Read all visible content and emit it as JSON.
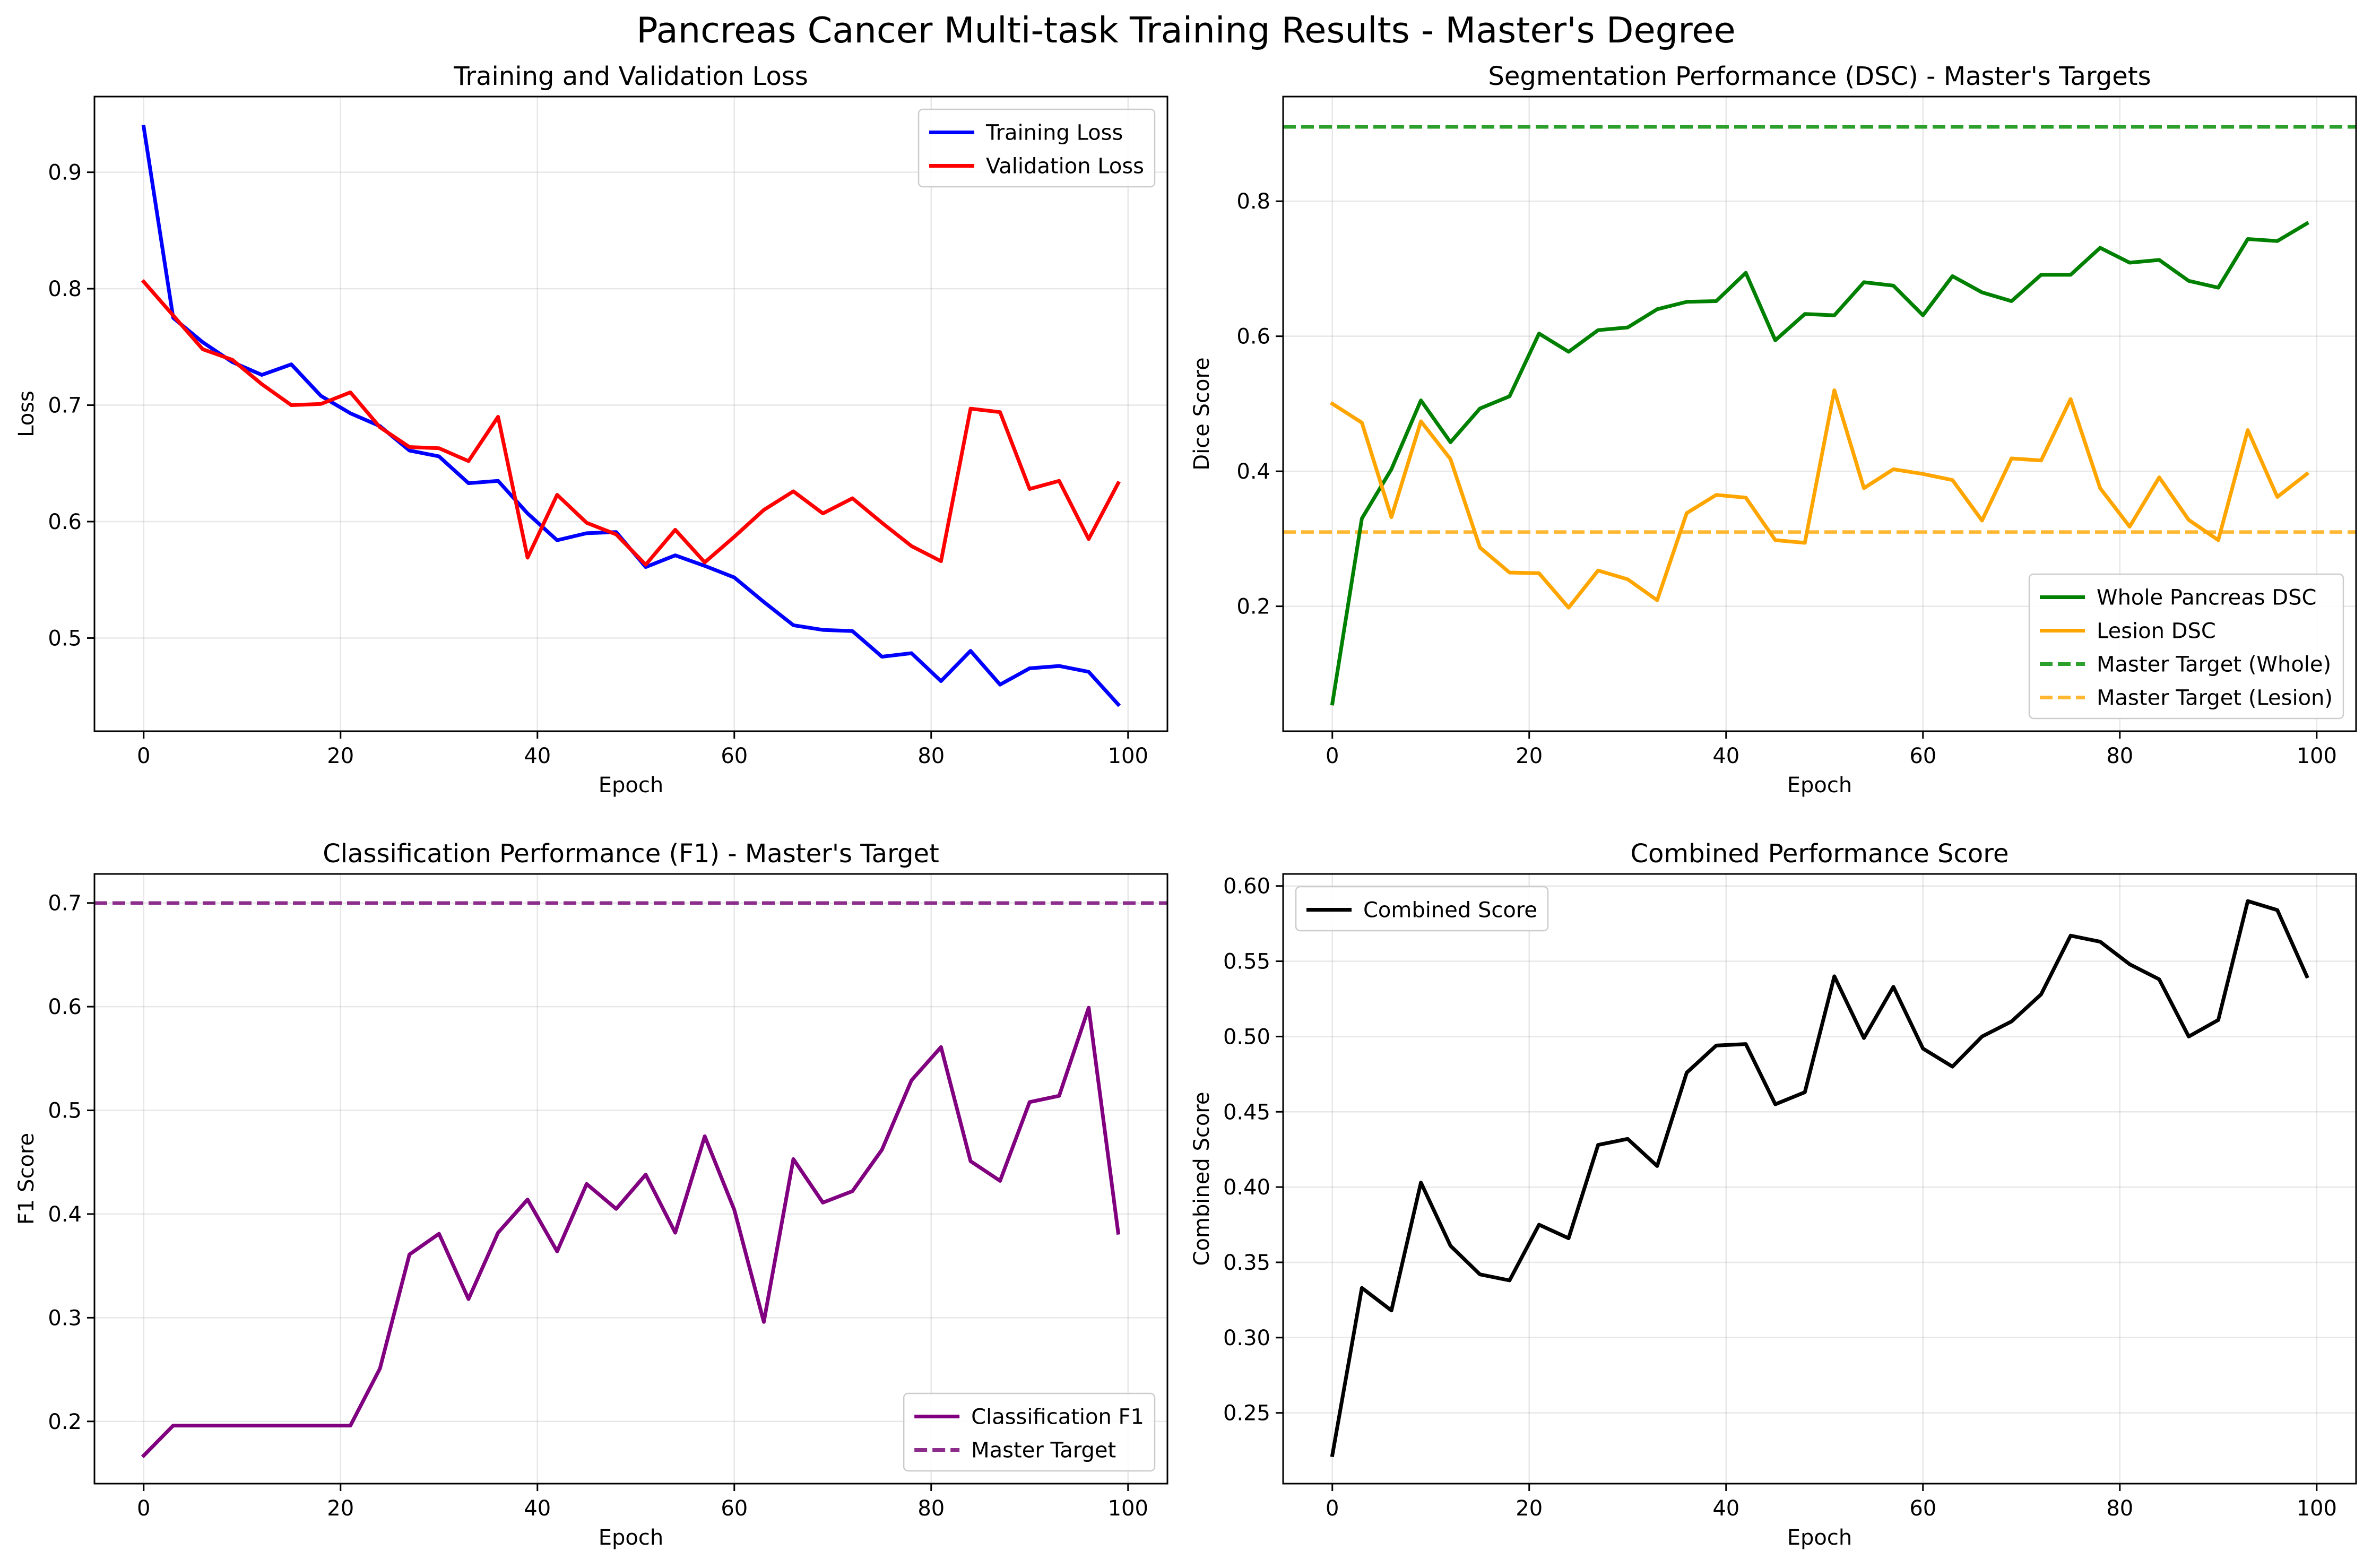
{
  "figure": {
    "title": "Pancreas Cancer Multi-task Training Results - Master's Degree"
  },
  "chart_data": [
    {
      "id": "loss",
      "type": "line",
      "title": "Training and Validation Loss",
      "xlabel": "Epoch",
      "ylabel": "Loss",
      "xlim": [
        -5,
        104
      ],
      "ylim": [
        0.42,
        0.965
      ],
      "xticks": [
        0,
        20,
        40,
        60,
        80,
        100
      ],
      "yticks": [
        0.5,
        0.6,
        0.7,
        0.8,
        0.9
      ],
      "ytick_labels": [
        "0.5",
        "0.6",
        "0.7",
        "0.8",
        "0.9"
      ],
      "grid": true,
      "legend_position": "top-right",
      "x": [
        0,
        3,
        6,
        9,
        12,
        15,
        18,
        21,
        24,
        27,
        30,
        33,
        36,
        39,
        42,
        45,
        48,
        51,
        54,
        57,
        60,
        63,
        66,
        69,
        72,
        75,
        78,
        81,
        84,
        87,
        90,
        93,
        96,
        99
      ],
      "series": [
        {
          "name": "Training Loss",
          "color": "#0000ff",
          "style": "solid",
          "values": [
            0.939,
            0.775,
            0.754,
            0.737,
            0.726,
            0.735,
            0.708,
            0.693,
            0.682,
            0.661,
            0.656,
            0.633,
            0.635,
            0.607,
            0.584,
            0.59,
            0.591,
            0.561,
            0.571,
            0.562,
            0.552,
            0.531,
            0.511,
            0.507,
            0.506,
            0.484,
            0.487,
            0.463,
            0.489,
            0.46,
            0.474,
            0.476,
            0.471,
            0.443
          ]
        },
        {
          "name": "Validation Loss",
          "color": "#ff0000",
          "style": "solid",
          "values": [
            0.806,
            0.777,
            0.748,
            0.739,
            0.718,
            0.7,
            0.701,
            0.711,
            0.681,
            0.664,
            0.663,
            0.652,
            0.69,
            0.569,
            0.623,
            0.599,
            0.589,
            0.563,
            0.593,
            0.565,
            0.587,
            0.61,
            0.626,
            0.607,
            0.62,
            0.599,
            0.579,
            0.566,
            0.697,
            0.694,
            0.628,
            0.635,
            0.585,
            0.633
          ]
        }
      ]
    },
    {
      "id": "dsc",
      "type": "line",
      "title": "Segmentation Performance (DSC) - Master's Targets",
      "xlabel": "Epoch",
      "ylabel": "Dice Score",
      "xlim": [
        -5,
        104
      ],
      "ylim": [
        0.015,
        0.955
      ],
      "xticks": [
        0,
        20,
        40,
        60,
        80,
        100
      ],
      "yticks": [
        0.2,
        0.4,
        0.6,
        0.8
      ],
      "ytick_labels": [
        "0.2",
        "0.4",
        "0.6",
        "0.8"
      ],
      "grid": true,
      "legend_position": "bottom-right",
      "x": [
        0,
        3,
        6,
        9,
        12,
        15,
        18,
        21,
        24,
        27,
        30,
        33,
        36,
        39,
        42,
        45,
        48,
        51,
        54,
        57,
        60,
        63,
        66,
        69,
        72,
        75,
        78,
        81,
        84,
        87,
        90,
        93,
        96,
        99
      ],
      "series": [
        {
          "name": "Whole Pancreas DSC",
          "color": "#008000",
          "style": "solid",
          "values": [
            0.056,
            0.33,
            0.403,
            0.505,
            0.443,
            0.493,
            0.511,
            0.604,
            0.577,
            0.609,
            0.613,
            0.64,
            0.651,
            0.652,
            0.694,
            0.594,
            0.633,
            0.631,
            0.68,
            0.675,
            0.631,
            0.689,
            0.665,
            0.652,
            0.691,
            0.691,
            0.731,
            0.709,
            0.713,
            0.682,
            0.672,
            0.744,
            0.741,
            0.767
          ]
        },
        {
          "name": "Lesion DSC",
          "color": "#ffa500",
          "style": "solid",
          "values": [
            0.5,
            0.472,
            0.332,
            0.474,
            0.418,
            0.287,
            0.25,
            0.249,
            0.198,
            0.253,
            0.24,
            0.209,
            0.338,
            0.365,
            0.361,
            0.298,
            0.294,
            0.52,
            0.375,
            0.403,
            0.396,
            0.387,
            0.327,
            0.419,
            0.416,
            0.507,
            0.375,
            0.318,
            0.391,
            0.328,
            0.298,
            0.461,
            0.362,
            0.396
          ]
        }
      ],
      "reference_lines": [
        {
          "name": "Master Target (Whole)",
          "y": 0.91,
          "color": "#2ca02c",
          "style": "dashed"
        },
        {
          "name": "Master Target (Lesion)",
          "y": 0.31,
          "color": "#ffb732",
          "style": "dashed"
        }
      ]
    },
    {
      "id": "f1",
      "type": "line",
      "title": "Classification Performance (F1) - Master's Target",
      "xlabel": "Epoch",
      "ylabel": "F1 Score",
      "xlim": [
        -5,
        104
      ],
      "ylim": [
        0.14,
        0.728
      ],
      "xticks": [
        0,
        20,
        40,
        60,
        80,
        100
      ],
      "yticks": [
        0.2,
        0.3,
        0.4,
        0.5,
        0.6,
        0.7
      ],
      "ytick_labels": [
        "0.2",
        "0.3",
        "0.4",
        "0.5",
        "0.6",
        "0.7"
      ],
      "grid": true,
      "legend_position": "bottom-right",
      "x": [
        0,
        3,
        6,
        9,
        12,
        15,
        18,
        21,
        24,
        27,
        30,
        33,
        36,
        39,
        42,
        45,
        48,
        51,
        54,
        57,
        60,
        63,
        66,
        69,
        72,
        75,
        78,
        81,
        84,
        87,
        90,
        93,
        96,
        99
      ],
      "series": [
        {
          "name": "Classification F1",
          "color": "#800080",
          "style": "solid",
          "values": [
            0.167,
            0.196,
            0.196,
            0.196,
            0.196,
            0.196,
            0.196,
            0.196,
            0.251,
            0.361,
            0.381,
            0.318,
            0.382,
            0.414,
            0.364,
            0.429,
            0.405,
            0.438,
            0.382,
            0.475,
            0.404,
            0.296,
            0.453,
            0.411,
            0.422,
            0.462,
            0.529,
            0.561,
            0.451,
            0.432,
            0.508,
            0.514,
            0.599,
            0.382
          ]
        }
      ],
      "reference_lines": [
        {
          "name": "Master Target",
          "y": 0.7,
          "color": "#8c2d8c",
          "style": "dashed"
        }
      ]
    },
    {
      "id": "combined",
      "type": "line",
      "title": "Combined Performance Score",
      "xlabel": "Epoch",
      "ylabel": "Combined Score",
      "xlim": [
        -5,
        104
      ],
      "ylim": [
        0.203,
        0.608
      ],
      "xticks": [
        0,
        20,
        40,
        60,
        80,
        100
      ],
      "yticks": [
        0.25,
        0.3,
        0.35,
        0.4,
        0.45,
        0.5,
        0.55,
        0.6
      ],
      "ytick_labels": [
        "0.25",
        "0.30",
        "0.35",
        "0.40",
        "0.45",
        "0.50",
        "0.55",
        "0.60"
      ],
      "grid": true,
      "legend_position": "top-left",
      "x": [
        0,
        3,
        6,
        9,
        12,
        15,
        18,
        21,
        24,
        27,
        30,
        33,
        36,
        39,
        42,
        45,
        48,
        51,
        54,
        57,
        60,
        63,
        66,
        69,
        72,
        75,
        78,
        81,
        84,
        87,
        90,
        93,
        96,
        99
      ],
      "series": [
        {
          "name": "Combined Score",
          "color": "#000000",
          "style": "solid",
          "values": [
            0.222,
            0.333,
            0.318,
            0.403,
            0.361,
            0.342,
            0.338,
            0.375,
            0.366,
            0.428,
            0.432,
            0.414,
            0.476,
            0.494,
            0.495,
            0.455,
            0.463,
            0.54,
            0.499,
            0.533,
            0.492,
            0.48,
            0.5,
            0.51,
            0.528,
            0.567,
            0.563,
            0.548,
            0.538,
            0.5,
            0.511,
            0.59,
            0.584,
            0.54
          ]
        }
      ]
    }
  ]
}
